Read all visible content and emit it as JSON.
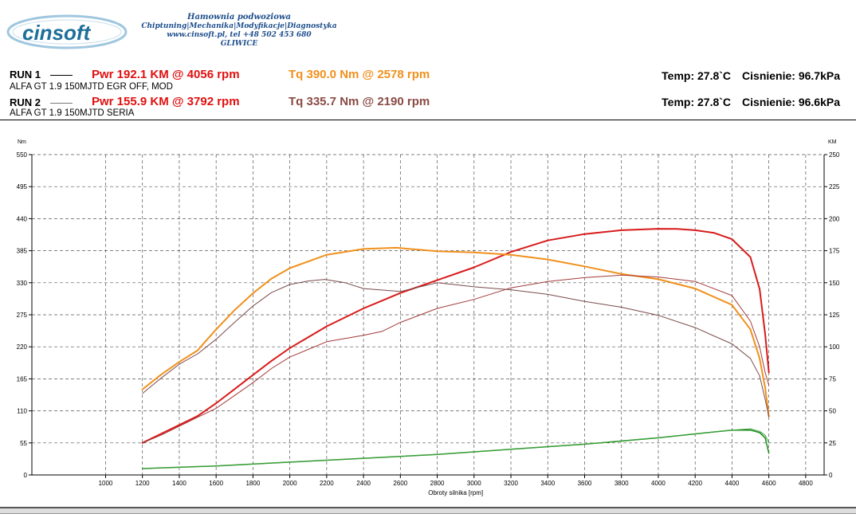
{
  "header": {
    "logo_text": "cinsoft",
    "company_line1": "Hamownia podwoziowa",
    "company_line2": "Chiptuning|Mechanika|Modyfikacje|Diagnostyka",
    "company_line3": "www.cinsoft.pl, tel +48 502 453 680",
    "company_line4": "GLIWICE"
  },
  "runs": [
    {
      "label": "RUN 1",
      "pwr": "Pwr  192.1 KM @ 4056 rpm",
      "tq": "Tq 390.0 Nm @ 2578 rpm",
      "description": "ALFA GT 1.9 150MJTD EGR OFF, MOD",
      "temp": "Temp: 27.8`C",
      "pressure": "Cisnienie: 96.7kPa"
    },
    {
      "label": "RUN 2",
      "pwr": "Pwr  155.9 KM @ 3792 rpm",
      "tq": "Tq 335.7 Nm @ 2190 rpm",
      "description": "ALFA GT 1.9 150MJTD SERIA",
      "temp": "Temp: 27.8`C",
      "pressure": "Cisnienie: 96.6kPa"
    }
  ],
  "colors": {
    "power_run1": "#d81b1b",
    "torque_run1": "#f0901c",
    "power_run2": "#a33a3a",
    "torque_run2": "#7a4a4a",
    "loss_run1": "#1a8a1a",
    "loss_run2": "#3aa23a"
  },
  "chart_data": {
    "type": "line",
    "xlabel": "Obroty silnika [rpm]",
    "ylabel_left": "Nm",
    "ylabel_right": "KM",
    "xlim": [
      600,
      4900
    ],
    "ylim_left": [
      0,
      550
    ],
    "ylim_right": [
      0,
      250
    ],
    "x_ticks": [
      1000,
      1200,
      1400,
      1600,
      1800,
      2000,
      2200,
      2400,
      2600,
      2800,
      3000,
      3200,
      3400,
      3600,
      3800,
      4000,
      4200,
      4400,
      4600,
      4800
    ],
    "y_ticks_left": [
      0,
      55,
      110,
      165,
      220,
      275,
      330,
      385,
      440,
      495,
      550
    ],
    "y_ticks_right": [
      0,
      25,
      50,
      75,
      100,
      125,
      150,
      175,
      200,
      225,
      250
    ],
    "grid": true,
    "series": [
      {
        "axis": "right",
        "color_key": "power_run1",
        "width": 2,
        "x": [
          1200,
          1300,
          1400,
          1500,
          1600,
          1700,
          1800,
          1900,
          2000,
          2200,
          2400,
          2600,
          2800,
          3000,
          3200,
          3400,
          3600,
          3800,
          4000,
          4100,
          4200,
          4300,
          4400,
          4500,
          4550,
          4580,
          4600
        ],
        "y": [
          25,
          32,
          39,
          46,
          56,
          67,
          78,
          89,
          99,
          116,
          130,
          142,
          152,
          162,
          174,
          183,
          188,
          191,
          192.1,
          192,
          191,
          189,
          184,
          170,
          145,
          110,
          80
        ]
      },
      {
        "axis": "left",
        "color_key": "torque_run1",
        "width": 2,
        "x": [
          1200,
          1300,
          1400,
          1500,
          1600,
          1700,
          1800,
          1900,
          2000,
          2200,
          2400,
          2578,
          2800,
          3000,
          3200,
          3400,
          3600,
          3800,
          4000,
          4200,
          4400,
          4500,
          4550,
          4580,
          4600
        ],
        "y": [
          147,
          172,
          194,
          214,
          250,
          283,
          312,
          337,
          355,
          378,
          388,
          390,
          384,
          382,
          378,
          370,
          358,
          345,
          336,
          320,
          292,
          250,
          200,
          150,
          100
        ]
      },
      {
        "axis": "right",
        "color_key": "power_run2",
        "width": 1,
        "x": [
          1200,
          1300,
          1400,
          1500,
          1600,
          1700,
          1800,
          1900,
          2000,
          2200,
          2400,
          2500,
          2600,
          2800,
          3000,
          3200,
          3400,
          3600,
          3800,
          4000,
          4200,
          4400,
          4500,
          4550,
          4580,
          4600
        ],
        "y": [
          25,
          31,
          38,
          45,
          52,
          62,
          72,
          83,
          92,
          104,
          109,
          112,
          119,
          130,
          137,
          146,
          151,
          154,
          155.9,
          154.5,
          151,
          140,
          120,
          100,
          80,
          70
        ]
      },
      {
        "axis": "left",
        "color_key": "torque_run2",
        "width": 1,
        "x": [
          1200,
          1300,
          1400,
          1500,
          1600,
          1700,
          1800,
          1900,
          2000,
          2100,
          2190,
          2300,
          2400,
          2600,
          2800,
          3000,
          3200,
          3400,
          3600,
          3800,
          4000,
          4200,
          4400,
          4500,
          4550,
          4580,
          4600
        ],
        "y": [
          140,
          166,
          190,
          208,
          233,
          262,
          290,
          313,
          327,
          333,
          335.7,
          330,
          320,
          315,
          330,
          323,
          318,
          310,
          298,
          288,
          274,
          253,
          225,
          200,
          170,
          130,
          100
        ]
      },
      {
        "axis": "right",
        "color_key": "loss_run1",
        "width": 1.5,
        "x": [
          1200,
          1600,
          2000,
          2400,
          2800,
          3200,
          3600,
          4000,
          4200,
          4400,
          4500,
          4550,
          4580,
          4600
        ],
        "y": [
          5,
          7,
          10,
          13,
          16,
          20,
          24,
          29,
          32,
          35,
          35,
          33,
          29,
          17
        ]
      },
      {
        "axis": "right",
        "color_key": "loss_run2",
        "width": 1,
        "x": [
          1200,
          1600,
          2000,
          2400,
          2800,
          3200,
          3600,
          4000,
          4200,
          4400,
          4500,
          4550,
          4580,
          4600
        ],
        "y": [
          5,
          7,
          10,
          13,
          16,
          20,
          24,
          29,
          32,
          35,
          36,
          34,
          31,
          25
        ]
      }
    ]
  }
}
